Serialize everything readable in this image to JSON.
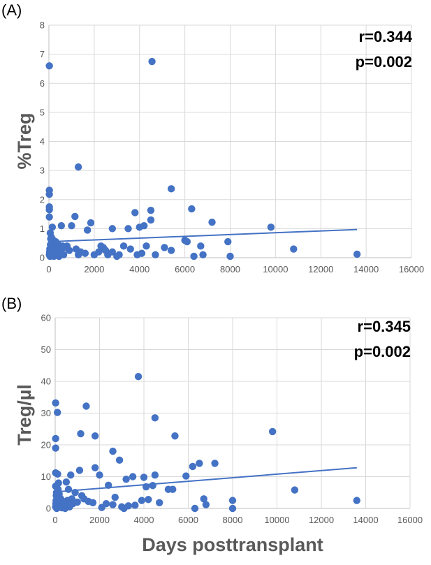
{
  "style": {
    "point_color": "#4472C4",
    "line_color": "#4472C4",
    "grid_color": "#d9d9d9",
    "axis_color": "#bfbfbf"
  },
  "shared_xlabel": "Days posttransplant",
  "chart_data": [
    {
      "type": "scatter",
      "panel_label": "(A)",
      "ylabel": "%Treg",
      "xlim": [
        0,
        16000
      ],
      "ylim": [
        0,
        8
      ],
      "x_ticks": [
        "0",
        "2000",
        "4000",
        "6000",
        "8000",
        "10000",
        "12000",
        "14000",
        "16000"
      ],
      "y_ticks": [
        "0",
        "1",
        "2",
        "3",
        "4",
        "5",
        "6",
        "7",
        "8"
      ],
      "grid": true,
      "annotations": [
        "r=0.344",
        "p=0.002"
      ],
      "trendline": {
        "x": [
          0,
          13600
        ],
        "y": [
          0.55,
          0.97
        ]
      },
      "points": [
        [
          20,
          6.6
        ],
        [
          4550,
          6.75
        ],
        [
          1300,
          3.12
        ],
        [
          5400,
          2.37
        ],
        [
          20,
          2.32
        ],
        [
          20,
          2.18
        ],
        [
          20,
          1.75
        ],
        [
          20,
          1.65
        ],
        [
          6300,
          1.68
        ],
        [
          3800,
          1.55
        ],
        [
          4500,
          1.63
        ],
        [
          20,
          1.4
        ],
        [
          1150,
          1.42
        ],
        [
          7200,
          1.22
        ],
        [
          1850,
          1.2
        ],
        [
          4500,
          1.3
        ],
        [
          150,
          1.05
        ],
        [
          550,
          1.1
        ],
        [
          1000,
          1.1
        ],
        [
          1700,
          0.95
        ],
        [
          2800,
          1.0
        ],
        [
          3500,
          1.0
        ],
        [
          4000,
          1.05
        ],
        [
          4200,
          1.1
        ],
        [
          9800,
          1.05
        ],
        [
          60,
          0.85
        ],
        [
          110,
          0.7
        ],
        [
          200,
          0.6
        ],
        [
          300,
          0.55
        ],
        [
          400,
          0.45
        ],
        [
          600,
          0.4
        ],
        [
          700,
          0.35
        ],
        [
          800,
          0.4
        ],
        [
          1200,
          0.3
        ],
        [
          1600,
          0.15
        ],
        [
          2200,
          0.2
        ],
        [
          2300,
          0.4
        ],
        [
          2400,
          0.35
        ],
        [
          2500,
          0.25
        ],
        [
          2600,
          0.1
        ],
        [
          2800,
          0.2
        ],
        [
          3100,
          0.1
        ],
        [
          3300,
          0.4
        ],
        [
          3600,
          0.3
        ],
        [
          3900,
          0.1
        ],
        [
          4100,
          0.15
        ],
        [
          4300,
          0.4
        ],
        [
          4700,
          0.1
        ],
        [
          5100,
          0.35
        ],
        [
          5400,
          0.25
        ],
        [
          6000,
          0.6
        ],
        [
          6100,
          0.55
        ],
        [
          6400,
          0.05
        ],
        [
          6700,
          0.4
        ],
        [
          6800,
          0.1
        ],
        [
          7900,
          0.55
        ],
        [
          8000,
          0.05
        ],
        [
          10800,
          0.3
        ],
        [
          13600,
          0.12
        ],
        [
          20,
          0.1
        ],
        [
          30,
          0.2
        ],
        [
          40,
          0.3
        ],
        [
          50,
          0.05
        ],
        [
          70,
          0.45
        ],
        [
          80,
          0.65
        ],
        [
          90,
          0.15
        ],
        [
          100,
          0.25
        ],
        [
          120,
          0.35
        ],
        [
          130,
          0.5
        ],
        [
          160,
          0.1
        ],
        [
          180,
          0.3
        ],
        [
          220,
          0.05
        ],
        [
          250,
          0.15
        ],
        [
          350,
          0.25
        ],
        [
          450,
          0.05
        ],
        [
          500,
          0.2
        ],
        [
          650,
          0.1
        ],
        [
          900,
          0.25
        ],
        [
          1300,
          0.1
        ],
        [
          1400,
          0.2
        ],
        [
          2000,
          0.1
        ],
        [
          3000,
          0.05
        ]
      ]
    },
    {
      "type": "scatter",
      "panel_label": "(B)",
      "ylabel": "Treg/µl",
      "xlim": [
        0,
        16000
      ],
      "ylim": [
        0,
        60
      ],
      "x_ticks": [
        "0",
        "2000",
        "4000",
        "6000",
        "8000",
        "10000",
        "12000",
        "14000",
        "16000"
      ],
      "y_ticks": [
        "0",
        "10",
        "20",
        "30",
        "40",
        "50",
        "60"
      ],
      "grid": true,
      "annotations": [
        "r=0.345",
        "p=0.002"
      ],
      "trendline": {
        "x": [
          0,
          13600
        ],
        "y": [
          5.2,
          12.8
        ]
      },
      "points": [
        [
          3750,
          41.5
        ],
        [
          20,
          33.2
        ],
        [
          100,
          30.2
        ],
        [
          1400,
          32.2
        ],
        [
          4500,
          28.5
        ],
        [
          20,
          22
        ],
        [
          1150,
          23.5
        ],
        [
          1800,
          22.8
        ],
        [
          5400,
          22.8
        ],
        [
          9800,
          24.2
        ],
        [
          20,
          19
        ],
        [
          2600,
          18
        ],
        [
          2900,
          15.2
        ],
        [
          20,
          11.2
        ],
        [
          110,
          10.8
        ],
        [
          1800,
          12.8
        ],
        [
          6200,
          13.2
        ],
        [
          6500,
          14.2
        ],
        [
          7200,
          14.2
        ],
        [
          700,
          10.5
        ],
        [
          1100,
          12
        ],
        [
          2000,
          10.5
        ],
        [
          3200,
          9.2
        ],
        [
          3500,
          10
        ],
        [
          4000,
          9.8
        ],
        [
          4500,
          10.5
        ],
        [
          5900,
          10.2
        ],
        [
          20,
          7
        ],
        [
          150,
          8
        ],
        [
          500,
          8.3
        ],
        [
          600,
          6
        ],
        [
          900,
          5
        ],
        [
          1300,
          3
        ],
        [
          1500,
          2.2
        ],
        [
          1700,
          1.8
        ],
        [
          2300,
          1.5
        ],
        [
          2400,
          7.3
        ],
        [
          2600,
          1.2
        ],
        [
          3000,
          0.5
        ],
        [
          3300,
          0.8
        ],
        [
          3600,
          1
        ],
        [
          3900,
          2.5
        ],
        [
          4100,
          6.8
        ],
        [
          4200,
          2.8
        ],
        [
          4400,
          7.2
        ],
        [
          4700,
          1.8
        ],
        [
          5100,
          6
        ],
        [
          5300,
          6
        ],
        [
          6300,
          0
        ],
        [
          6700,
          3
        ],
        [
          6800,
          1.2
        ],
        [
          8000,
          2.5
        ],
        [
          8000,
          0
        ],
        [
          10800,
          5.8
        ],
        [
          13600,
          2.5
        ],
        [
          20,
          0.5
        ],
        [
          30,
          1.5
        ],
        [
          40,
          2.5
        ],
        [
          50,
          4
        ],
        [
          60,
          5
        ],
        [
          70,
          0
        ],
        [
          80,
          3.5
        ],
        [
          90,
          1
        ],
        [
          120,
          2
        ],
        [
          130,
          6
        ],
        [
          160,
          0.5
        ],
        [
          180,
          4.5
        ],
        [
          200,
          1.5
        ],
        [
          250,
          3
        ],
        [
          300,
          0.2
        ],
        [
          350,
          2.2
        ],
        [
          400,
          1
        ],
        [
          450,
          0
        ],
        [
          550,
          2.5
        ],
        [
          650,
          0.5
        ],
        [
          750,
          3
        ],
        [
          800,
          1.5
        ],
        [
          1000,
          2
        ],
        [
          1200,
          4
        ],
        [
          2100,
          0.3
        ],
        [
          2700,
          3.5
        ],
        [
          3100,
          0
        ]
      ]
    }
  ]
}
